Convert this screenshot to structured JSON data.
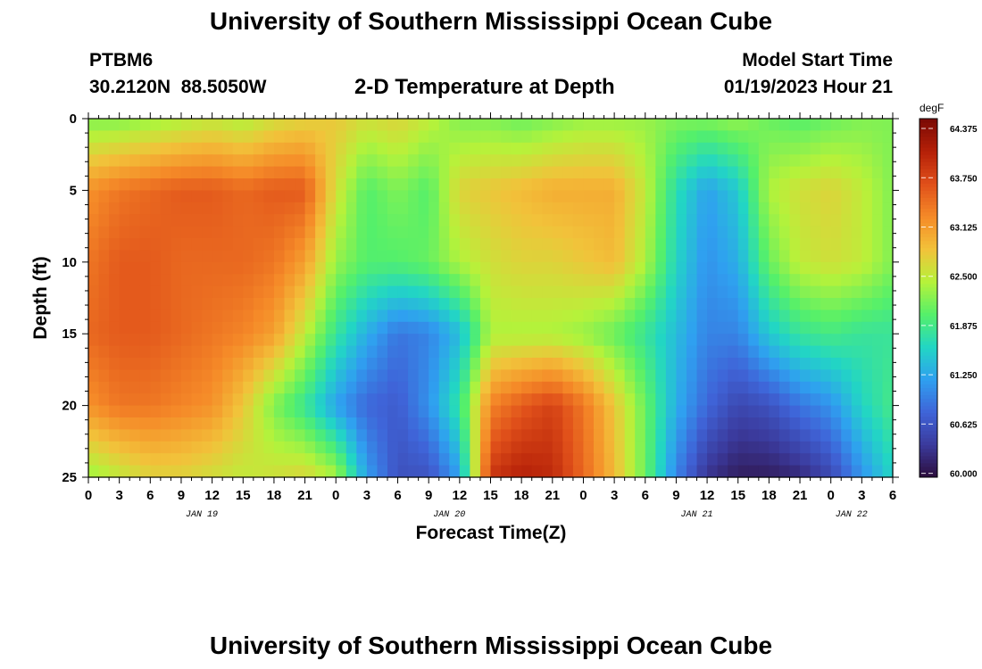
{
  "header": {
    "title": "University of Southern Mississippi Ocean Cube",
    "station_id": "PTBM6",
    "station_coords": "30.2120N  88.5050W",
    "subtitle": "2-D Temperature at Depth",
    "model_start_label": "Model Start Time",
    "model_start_value": "01/19/2023 Hour 21"
  },
  "footer": {
    "title": "University of Southern Mississippi Ocean Cube"
  },
  "chart_data": {
    "type": "heatmap",
    "title": "2-D Temperature at Depth",
    "xlabel": "Forecast Time(Z)",
    "ylabel": "Depth (ft)",
    "colorbar_label": "degF",
    "x_range_hours": [
      0,
      78
    ],
    "y_range_ft": [
      0,
      25
    ],
    "y_inverted": true,
    "x_tick_labels": [
      "0",
      "3",
      "6",
      "9",
      "12",
      "15",
      "18",
      "21",
      "0",
      "3",
      "6",
      "9",
      "12",
      "15",
      "18",
      "21",
      "0",
      "3",
      "6",
      "9",
      "12",
      "15",
      "18",
      "21",
      "0",
      "3",
      "6"
    ],
    "x_date_labels": [
      {
        "label": "JAN 19",
        "hour": 11
      },
      {
        "label": "JAN 20",
        "hour": 35
      },
      {
        "label": "JAN 21",
        "hour": 59
      },
      {
        "label": "JAN 22",
        "hour": 74
      }
    ],
    "y_ticks": [
      0,
      5,
      10,
      15,
      20,
      25
    ],
    "color_scale": {
      "min": 59.95,
      "max": 64.5,
      "ticks": [
        "60.000",
        "60.625",
        "61.250",
        "61.875",
        "62.500",
        "63.125",
        "63.750",
        "64.375"
      ],
      "colors": [
        "#2c0d3b",
        "#3b3a9c",
        "#3f64d8",
        "#2fa0f0",
        "#22d6c4",
        "#55f06a",
        "#b6f23a",
        "#f2c23a",
        "#f58a28",
        "#e0501a",
        "#b52008",
        "#7a0a05"
      ]
    },
    "hours": [
      0,
      3,
      6,
      9,
      12,
      15,
      18,
      21,
      24,
      27,
      30,
      33,
      36,
      39,
      42,
      45,
      48,
      51,
      54,
      57,
      60,
      63,
      66,
      69,
      72,
      75,
      78
    ],
    "depths_ft": [
      0,
      5,
      10,
      15,
      20,
      25
    ],
    "values": [
      [
        62.2,
        62.2,
        62.3,
        62.4,
        62.5,
        62.4,
        62.6,
        62.7,
        62.8,
        62.6,
        62.7,
        62.5,
        62.2,
        62.2,
        62.1,
        62.2,
        62.3,
        62.3,
        62.3,
        62.2,
        62.2,
        62.3,
        62.1,
        62.0,
        62.1,
        62.2,
        62.2
      ],
      [
        63.2,
        63.4,
        63.5,
        63.6,
        63.6,
        63.5,
        63.6,
        63.6,
        62.6,
        62.0,
        62.2,
        62.0,
        62.7,
        62.8,
        62.9,
        63.0,
        63.0,
        63.0,
        62.5,
        61.7,
        61.2,
        61.5,
        62.4,
        62.6,
        62.7,
        62.5,
        62.2
      ],
      [
        63.4,
        63.6,
        63.6,
        63.5,
        63.5,
        63.5,
        63.4,
        63.1,
        62.3,
        62.0,
        62.0,
        62.1,
        62.4,
        62.6,
        62.7,
        62.7,
        62.8,
        62.9,
        62.4,
        61.6,
        61.1,
        61.3,
        62.1,
        62.5,
        62.6,
        62.5,
        62.2
      ],
      [
        63.5,
        63.6,
        63.6,
        63.5,
        63.4,
        63.3,
        63.1,
        62.5,
        61.8,
        61.3,
        60.9,
        61.0,
        61.4,
        62.4,
        62.4,
        62.4,
        62.3,
        62.1,
        61.8,
        61.4,
        61.0,
        61.0,
        61.5,
        61.8,
        61.9,
        61.8,
        61.8
      ],
      [
        63.2,
        63.4,
        63.4,
        63.3,
        63.2,
        62.8,
        62.2,
        61.8,
        61.2,
        60.8,
        60.7,
        61.1,
        61.8,
        63.3,
        63.6,
        63.8,
        63.4,
        62.8,
        62.1,
        61.3,
        60.8,
        60.5,
        60.6,
        60.9,
        61.1,
        61.6,
        61.9
      ],
      [
        62.3,
        62.5,
        62.7,
        62.7,
        62.6,
        62.5,
        62.6,
        62.7,
        62.4,
        61.2,
        60.6,
        60.6,
        61.2,
        63.9,
        64.1,
        64.0,
        63.5,
        62.9,
        62.1,
        61.0,
        60.3,
        60.1,
        60.1,
        60.2,
        60.5,
        61.1,
        61.6
      ]
    ]
  }
}
